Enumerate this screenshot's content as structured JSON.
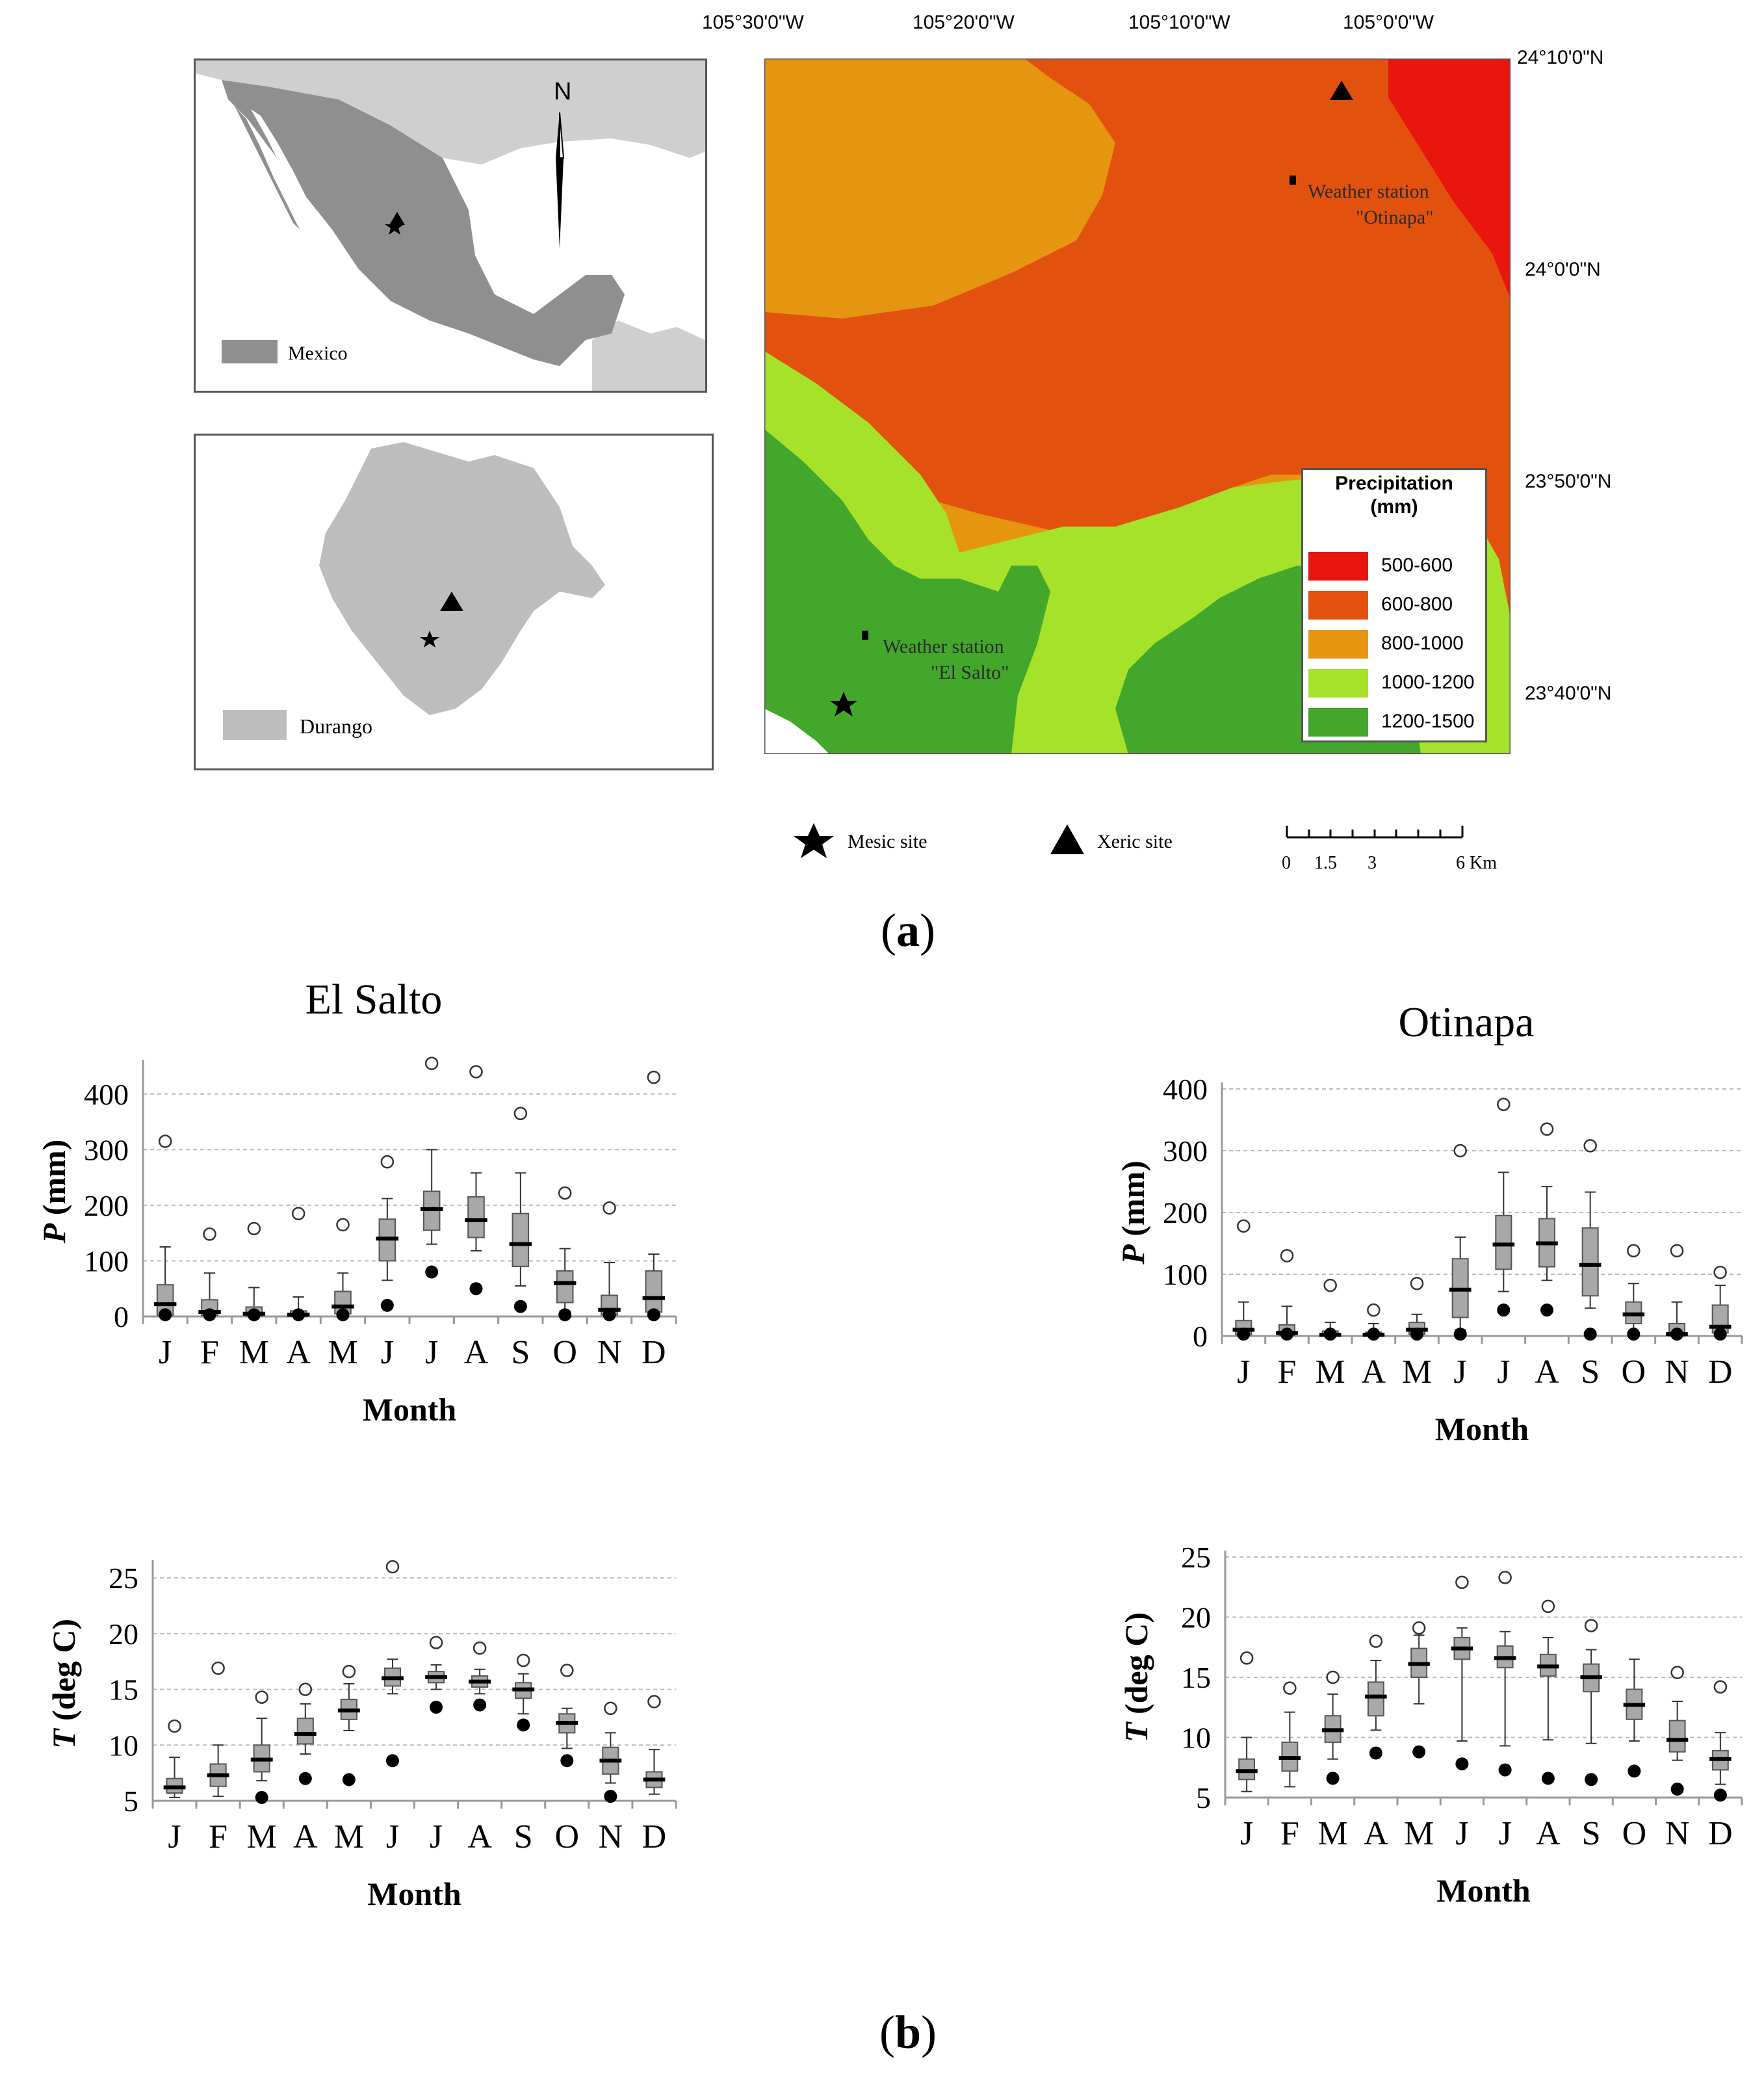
{
  "panel_a": {
    "label": "a",
    "inset_mexico": {
      "legend_label": "Mexico",
      "north_label": "N"
    },
    "inset_durango": {
      "legend_label": "Durango"
    },
    "main_map": {
      "longitudes": [
        "105°30'0\"W",
        "105°20'0\"W",
        "105°10'0\"W",
        "105°0'0\"W"
      ],
      "latitudes": [
        "24°10'0\"N",
        "24°0'0\"N",
        "23°50'0\"N",
        "23°40'0\"N"
      ],
      "station_otinapa": [
        "Weather station",
        "\"Otinapa\""
      ],
      "station_el_salto": [
        "Weather station",
        "\"El Salto\""
      ],
      "legend": {
        "title_line1": "Precipitation",
        "title_line2": "(mm)",
        "classes": [
          {
            "label": "500-600",
            "color": "#e8160c"
          },
          {
            "label": "600-800",
            "color": "#e2520e"
          },
          {
            "label": "800-1000",
            "color": "#e69510"
          },
          {
            "label": "1000-1200",
            "color": "#a6e22a"
          },
          {
            "label": "1200-1500",
            "color": "#43a72c"
          }
        ]
      }
    },
    "symbols": {
      "mesic_label": "Mesic site",
      "xeric_label": "Xeric site",
      "scale_ticks": [
        "0",
        "1.5",
        "3",
        "6 Km"
      ]
    }
  },
  "panel_b": {
    "label": "b",
    "el_salto_title": "El Salto",
    "otinapa_title": "Otinapa"
  },
  "chart_data": [
    {
      "type": "box",
      "station": "El Salto",
      "variable": "P",
      "ylabel": "P (mm)",
      "xlabel": "Month",
      "categories": [
        "J",
        "F",
        "M",
        "A",
        "M",
        "J",
        "J",
        "A",
        "S",
        "O",
        "N",
        "D"
      ],
      "ylim": [
        0,
        450
      ],
      "yticks": [
        0,
        100,
        200,
        300,
        400
      ],
      "boxes": [
        {
          "whisker_low": 0,
          "q1": 2,
          "median": 22,
          "q3": 57,
          "whisker_high": 125,
          "outlier_high": 315,
          "mark_low": 3
        },
        {
          "whisker_low": 0,
          "q1": 2,
          "median": 8,
          "q3": 30,
          "whisker_high": 78,
          "outlier_high": 148,
          "mark_low": 3
        },
        {
          "whisker_low": 0,
          "q1": 1,
          "median": 5,
          "q3": 17,
          "whisker_high": 52,
          "outlier_high": 158,
          "mark_low": 3
        },
        {
          "whisker_low": 0,
          "q1": 0,
          "median": 3,
          "q3": 10,
          "whisker_high": 35,
          "outlier_high": 185,
          "mark_low": 3
        },
        {
          "whisker_low": 0,
          "q1": 5,
          "median": 18,
          "q3": 45,
          "whisker_high": 78,
          "outlier_high": 165,
          "mark_low": 3
        },
        {
          "whisker_low": 65,
          "q1": 100,
          "median": 140,
          "q3": 175,
          "whisker_high": 212,
          "outlier_high": 278,
          "mark_low": 20
        },
        {
          "whisker_low": 130,
          "q1": 155,
          "median": 193,
          "q3": 225,
          "whisker_high": 300,
          "outlier_high": 455,
          "mark_low": 80
        },
        {
          "whisker_low": 118,
          "q1": 142,
          "median": 173,
          "q3": 215,
          "whisker_high": 258,
          "outlier_high": 440,
          "mark_low": 50
        },
        {
          "whisker_low": 55,
          "q1": 90,
          "median": 130,
          "q3": 185,
          "whisker_high": 258,
          "outlier_high": 365,
          "mark_low": 18
        },
        {
          "whisker_low": 10,
          "q1": 25,
          "median": 60,
          "q3": 82,
          "whisker_high": 122,
          "outlier_high": 222,
          "mark_low": 3
        },
        {
          "whisker_low": 0,
          "q1": 3,
          "median": 12,
          "q3": 38,
          "whisker_high": 97,
          "outlier_high": 195,
          "mark_low": 3
        },
        {
          "whisker_low": 0,
          "q1": 8,
          "median": 33,
          "q3": 82,
          "whisker_high": 112,
          "outlier_high": 430,
          "mark_low": 3
        }
      ]
    },
    {
      "type": "box",
      "station": "El Salto",
      "variable": "T",
      "ylabel": "T (deg C)",
      "xlabel": "Month",
      "categories": [
        "J",
        "F",
        "M",
        "A",
        "M",
        "J",
        "J",
        "A",
        "S",
        "O",
        "N",
        "D"
      ],
      "ylim": [
        5,
        26
      ],
      "yticks": [
        5,
        10,
        15,
        20,
        25
      ],
      "boxes": [
        {
          "whisker_low": 5.3,
          "q1": 5.7,
          "median": 6.2,
          "q3": 7.0,
          "whisker_high": 8.9,
          "outlier_high": 11.7,
          "mark_low": null
        },
        {
          "whisker_low": 5.4,
          "q1": 6.3,
          "median": 7.3,
          "q3": 8.3,
          "whisker_high": 10.0,
          "outlier_high": 16.9,
          "mark_low": null
        },
        {
          "whisker_low": 6.8,
          "q1": 7.6,
          "median": 8.7,
          "q3": 10.0,
          "whisker_high": 12.4,
          "outlier_high": 14.3,
          "mark_low": 5.3
        },
        {
          "whisker_low": 9.2,
          "q1": 10.1,
          "median": 11.0,
          "q3": 12.4,
          "whisker_high": 13.7,
          "outlier_high": 15.0,
          "mark_low": 7.0
        },
        {
          "whisker_low": 11.3,
          "q1": 12.3,
          "median": 13.1,
          "q3": 14.1,
          "whisker_high": 15.5,
          "outlier_high": 16.6,
          "mark_low": 6.9
        },
        {
          "whisker_low": 14.6,
          "q1": 15.3,
          "median": 16.0,
          "q3": 16.9,
          "whisker_high": 17.7,
          "outlier_high": 26.0,
          "mark_low": 8.6
        },
        {
          "whisker_low": 15.0,
          "q1": 15.6,
          "median": 16.1,
          "q3": 16.6,
          "whisker_high": 17.2,
          "outlier_high": 19.2,
          "mark_low": 13.4
        },
        {
          "whisker_low": 14.6,
          "q1": 15.2,
          "median": 15.7,
          "q3": 16.2,
          "whisker_high": 16.8,
          "outlier_high": 18.7,
          "mark_low": 13.6
        },
        {
          "whisker_low": 12.8,
          "q1": 14.2,
          "median": 15.0,
          "q3": 15.6,
          "whisker_high": 16.4,
          "outlier_high": 17.6,
          "mark_low": 11.8
        },
        {
          "whisker_low": 9.7,
          "q1": 11.1,
          "median": 12.0,
          "q3": 12.8,
          "whisker_high": 13.3,
          "outlier_high": 16.7,
          "mark_low": 8.6
        },
        {
          "whisker_low": 6.6,
          "q1": 7.4,
          "median": 8.6,
          "q3": 9.8,
          "whisker_high": 11.1,
          "outlier_high": 13.3,
          "mark_low": 5.4
        },
        {
          "whisker_low": 5.6,
          "q1": 6.2,
          "median": 6.9,
          "q3": 7.6,
          "whisker_high": 9.6,
          "outlier_high": 13.9,
          "mark_low": null
        }
      ]
    },
    {
      "type": "box",
      "station": "Otinapa",
      "variable": "P",
      "ylabel": "P (mm)",
      "xlabel": "Month",
      "categories": [
        "J",
        "F",
        "M",
        "A",
        "M",
        "J",
        "J",
        "A",
        "S",
        "O",
        "N",
        "D"
      ],
      "ylim": [
        0,
        400
      ],
      "yticks": [
        0,
        100,
        200,
        300,
        400
      ],
      "boxes": [
        {
          "whisker_low": 0,
          "q1": 2,
          "median": 10,
          "q3": 25,
          "whisker_high": 55,
          "outlier_high": 178,
          "mark_low": 3
        },
        {
          "whisker_low": 0,
          "q1": 1,
          "median": 5,
          "q3": 18,
          "whisker_high": 48,
          "outlier_high": 130,
          "mark_low": 3
        },
        {
          "whisker_low": 0,
          "q1": 0,
          "median": 2,
          "q3": 8,
          "whisker_high": 22,
          "outlier_high": 82,
          "mark_low": 3
        },
        {
          "whisker_low": 0,
          "q1": 0,
          "median": 2,
          "q3": 6,
          "whisker_high": 20,
          "outlier_high": 42,
          "mark_low": 3
        },
        {
          "whisker_low": 0,
          "q1": 3,
          "median": 10,
          "q3": 22,
          "whisker_high": 35,
          "outlier_high": 85,
          "mark_low": 3
        },
        {
          "whisker_low": 10,
          "q1": 30,
          "median": 75,
          "q3": 125,
          "whisker_high": 160,
          "outlier_high": 300,
          "mark_low": 3
        },
        {
          "whisker_low": 72,
          "q1": 108,
          "median": 148,
          "q3": 195,
          "whisker_high": 265,
          "outlier_high": 375,
          "mark_low": 42
        },
        {
          "whisker_low": 90,
          "q1": 112,
          "median": 150,
          "q3": 190,
          "whisker_high": 242,
          "outlier_high": 335,
          "mark_low": 42
        },
        {
          "whisker_low": 45,
          "q1": 65,
          "median": 115,
          "q3": 175,
          "whisker_high": 233,
          "outlier_high": 308,
          "mark_low": 3
        },
        {
          "whisker_low": 5,
          "q1": 20,
          "median": 35,
          "q3": 55,
          "whisker_high": 85,
          "outlier_high": 138,
          "mark_low": 3
        },
        {
          "whisker_low": 0,
          "q1": 0,
          "median": 3,
          "q3": 20,
          "whisker_high": 55,
          "outlier_high": 138,
          "mark_low": 3
        },
        {
          "whisker_low": 0,
          "q1": 5,
          "median": 15,
          "q3": 50,
          "whisker_high": 82,
          "outlier_high": 103,
          "mark_low": 3
        }
      ]
    },
    {
      "type": "box",
      "station": "Otinapa",
      "variable": "T",
      "ylabel": "T (deg C)",
      "xlabel": "Month",
      "categories": [
        "J",
        "F",
        "M",
        "A",
        "M",
        "J",
        "J",
        "A",
        "S",
        "O",
        "N",
        "D"
      ],
      "ylim": [
        5,
        25
      ],
      "yticks": [
        5,
        10,
        15,
        20,
        25
      ],
      "boxes": [
        {
          "whisker_low": 5.5,
          "q1": 6.5,
          "median": 7.2,
          "q3": 8.2,
          "whisker_high": 10.0,
          "outlier_high": 16.6,
          "mark_low": null
        },
        {
          "whisker_low": 5.9,
          "q1": 7.2,
          "median": 8.3,
          "q3": 9.6,
          "whisker_high": 12.1,
          "outlier_high": 14.1,
          "mark_low": null
        },
        {
          "whisker_low": 8.2,
          "q1": 9.6,
          "median": 10.6,
          "q3": 11.8,
          "whisker_high": 13.6,
          "outlier_high": 15.0,
          "mark_low": 6.6
        },
        {
          "whisker_low": 10.6,
          "q1": 11.8,
          "median": 13.4,
          "q3": 14.6,
          "whisker_high": 16.4,
          "outlier_high": 18.0,
          "mark_low": 8.7
        },
        {
          "whisker_low": 12.8,
          "q1": 15.0,
          "median": 16.1,
          "q3": 17.4,
          "whisker_high": 18.5,
          "outlier_high": 19.1,
          "mark_low": 8.8
        },
        {
          "whisker_low": 9.7,
          "q1": 16.5,
          "median": 17.4,
          "q3": 18.3,
          "whisker_high": 19.1,
          "outlier_high": 22.9,
          "mark_low": 7.8
        },
        {
          "whisker_low": 9.3,
          "q1": 15.8,
          "median": 16.6,
          "q3": 17.6,
          "whisker_high": 18.8,
          "outlier_high": 23.3,
          "mark_low": 7.3
        },
        {
          "whisker_low": 9.8,
          "q1": 15.1,
          "median": 15.9,
          "q3": 16.9,
          "whisker_high": 18.3,
          "outlier_high": 20.9,
          "mark_low": 6.6
        },
        {
          "whisker_low": 9.5,
          "q1": 13.8,
          "median": 15.0,
          "q3": 16.1,
          "whisker_high": 17.3,
          "outlier_high": 19.3,
          "mark_low": 6.5
        },
        {
          "whisker_low": 9.7,
          "q1": 11.5,
          "median": 12.7,
          "q3": 14.0,
          "whisker_high": 16.5,
          "outlier_high": null,
          "mark_low": 7.2
        },
        {
          "whisker_low": 8.1,
          "q1": 8.8,
          "median": 9.8,
          "q3": 11.4,
          "whisker_high": 13.0,
          "outlier_high": 15.4,
          "mark_low": 5.7
        },
        {
          "whisker_low": 6.1,
          "q1": 7.3,
          "median": 8.2,
          "q3": 8.9,
          "whisker_high": 10.4,
          "outlier_high": 14.2,
          "mark_low": 5.2
        }
      ]
    }
  ]
}
